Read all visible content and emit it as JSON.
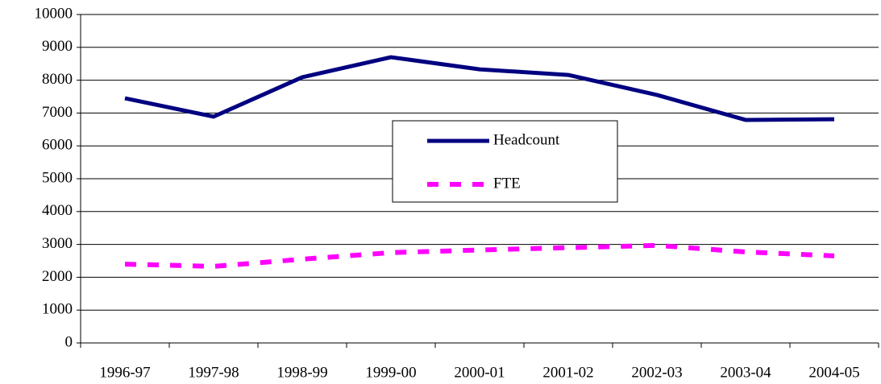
{
  "chart_data": {
    "type": "line",
    "categories": [
      "1996-97",
      "1997-98",
      "1998-99",
      "1999-00",
      "2000-01",
      "2001-02",
      "2002-03",
      "2003-04",
      "2004-05"
    ],
    "series": [
      {
        "name": "Headcount",
        "color": "#000080",
        "dash": "solid",
        "values": [
          7450,
          6890,
          8090,
          8700,
          8330,
          8160,
          7550,
          6790,
          6810
        ]
      },
      {
        "name": "FTE",
        "color": "#ff00ff",
        "dash": "dashed",
        "values": [
          2400,
          2330,
          2550,
          2750,
          2830,
          2900,
          2970,
          2770,
          2650
        ]
      }
    ],
    "ylim": [
      0,
      10000
    ],
    "yticks": [
      0,
      1000,
      2000,
      3000,
      4000,
      5000,
      6000,
      7000,
      8000,
      9000,
      10000
    ],
    "grid": true,
    "legend": "center"
  }
}
